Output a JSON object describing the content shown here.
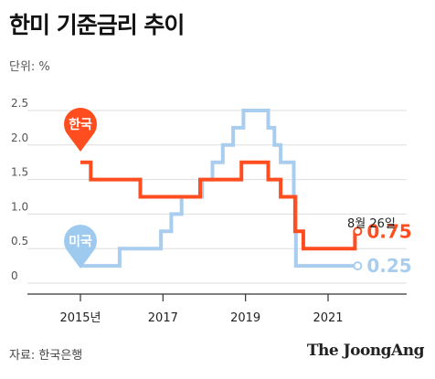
{
  "header": {
    "title": "한미 기준금리 추이",
    "unit": "단위: %"
  },
  "footer": {
    "source": "자료: 한국은행",
    "brand": "The JoongAng"
  },
  "chart_data": {
    "type": "line",
    "step": true,
    "title": "한미 기준금리 추이",
    "unit_label": "단위: %",
    "xlim": [
      2015,
      2023
    ],
    "ylim": [
      0,
      2.5
    ],
    "y_ticks": [
      {
        "value": 0,
        "label": "0"
      },
      {
        "value": 0.5,
        "label": "0.5"
      },
      {
        "value": 1.0,
        "label": "1.0"
      },
      {
        "value": 1.5,
        "label": "1.5"
      },
      {
        "value": 2.0,
        "label": "2.0"
      },
      {
        "value": 2.5,
        "label": "2.5"
      }
    ],
    "x_ticks": [
      {
        "value": 2015,
        "label": "2015년"
      },
      {
        "value": 2017,
        "label": "2017"
      },
      {
        "value": 2019,
        "label": "2019"
      },
      {
        "value": 2021,
        "label": "2021"
      }
    ],
    "grid": true,
    "annotation": {
      "text": "8월 26일",
      "x": 2021.65
    },
    "series": [
      {
        "name": "한국",
        "color": "#ff4d1f",
        "end_label": "0.75",
        "points": [
          [
            2015.0,
            1.75
          ],
          [
            2015.25,
            1.75
          ],
          [
            2015.25,
            1.5
          ],
          [
            2016.45,
            1.5
          ],
          [
            2016.45,
            1.25
          ],
          [
            2017.9,
            1.25
          ],
          [
            2017.9,
            1.5
          ],
          [
            2018.9,
            1.5
          ],
          [
            2018.9,
            1.75
          ],
          [
            2019.55,
            1.75
          ],
          [
            2019.55,
            1.5
          ],
          [
            2019.85,
            1.5
          ],
          [
            2019.85,
            1.25
          ],
          [
            2020.2,
            1.25
          ],
          [
            2020.2,
            0.75
          ],
          [
            2020.4,
            0.75
          ],
          [
            2020.4,
            0.5
          ],
          [
            2021.65,
            0.5
          ],
          [
            2021.65,
            0.75
          ]
        ]
      },
      {
        "name": "미국",
        "color": "#a9cdef",
        "end_label": "0.25",
        "points": [
          [
            2015.0,
            0.25
          ],
          [
            2015.95,
            0.25
          ],
          [
            2015.95,
            0.5
          ],
          [
            2016.95,
            0.5
          ],
          [
            2016.95,
            0.75
          ],
          [
            2017.2,
            0.75
          ],
          [
            2017.2,
            1.0
          ],
          [
            2017.45,
            1.0
          ],
          [
            2017.45,
            1.25
          ],
          [
            2017.95,
            1.25
          ],
          [
            2017.95,
            1.5
          ],
          [
            2018.2,
            1.5
          ],
          [
            2018.2,
            1.75
          ],
          [
            2018.45,
            1.75
          ],
          [
            2018.45,
            2.0
          ],
          [
            2018.7,
            2.0
          ],
          [
            2018.7,
            2.25
          ],
          [
            2018.95,
            2.25
          ],
          [
            2018.95,
            2.5
          ],
          [
            2019.55,
            2.5
          ],
          [
            2019.55,
            2.25
          ],
          [
            2019.7,
            2.25
          ],
          [
            2019.7,
            2.0
          ],
          [
            2019.85,
            2.0
          ],
          [
            2019.85,
            1.75
          ],
          [
            2020.17,
            1.75
          ],
          [
            2020.17,
            1.25
          ],
          [
            2020.22,
            1.25
          ],
          [
            2020.22,
            0.25
          ],
          [
            2021.65,
            0.25
          ]
        ]
      }
    ]
  }
}
